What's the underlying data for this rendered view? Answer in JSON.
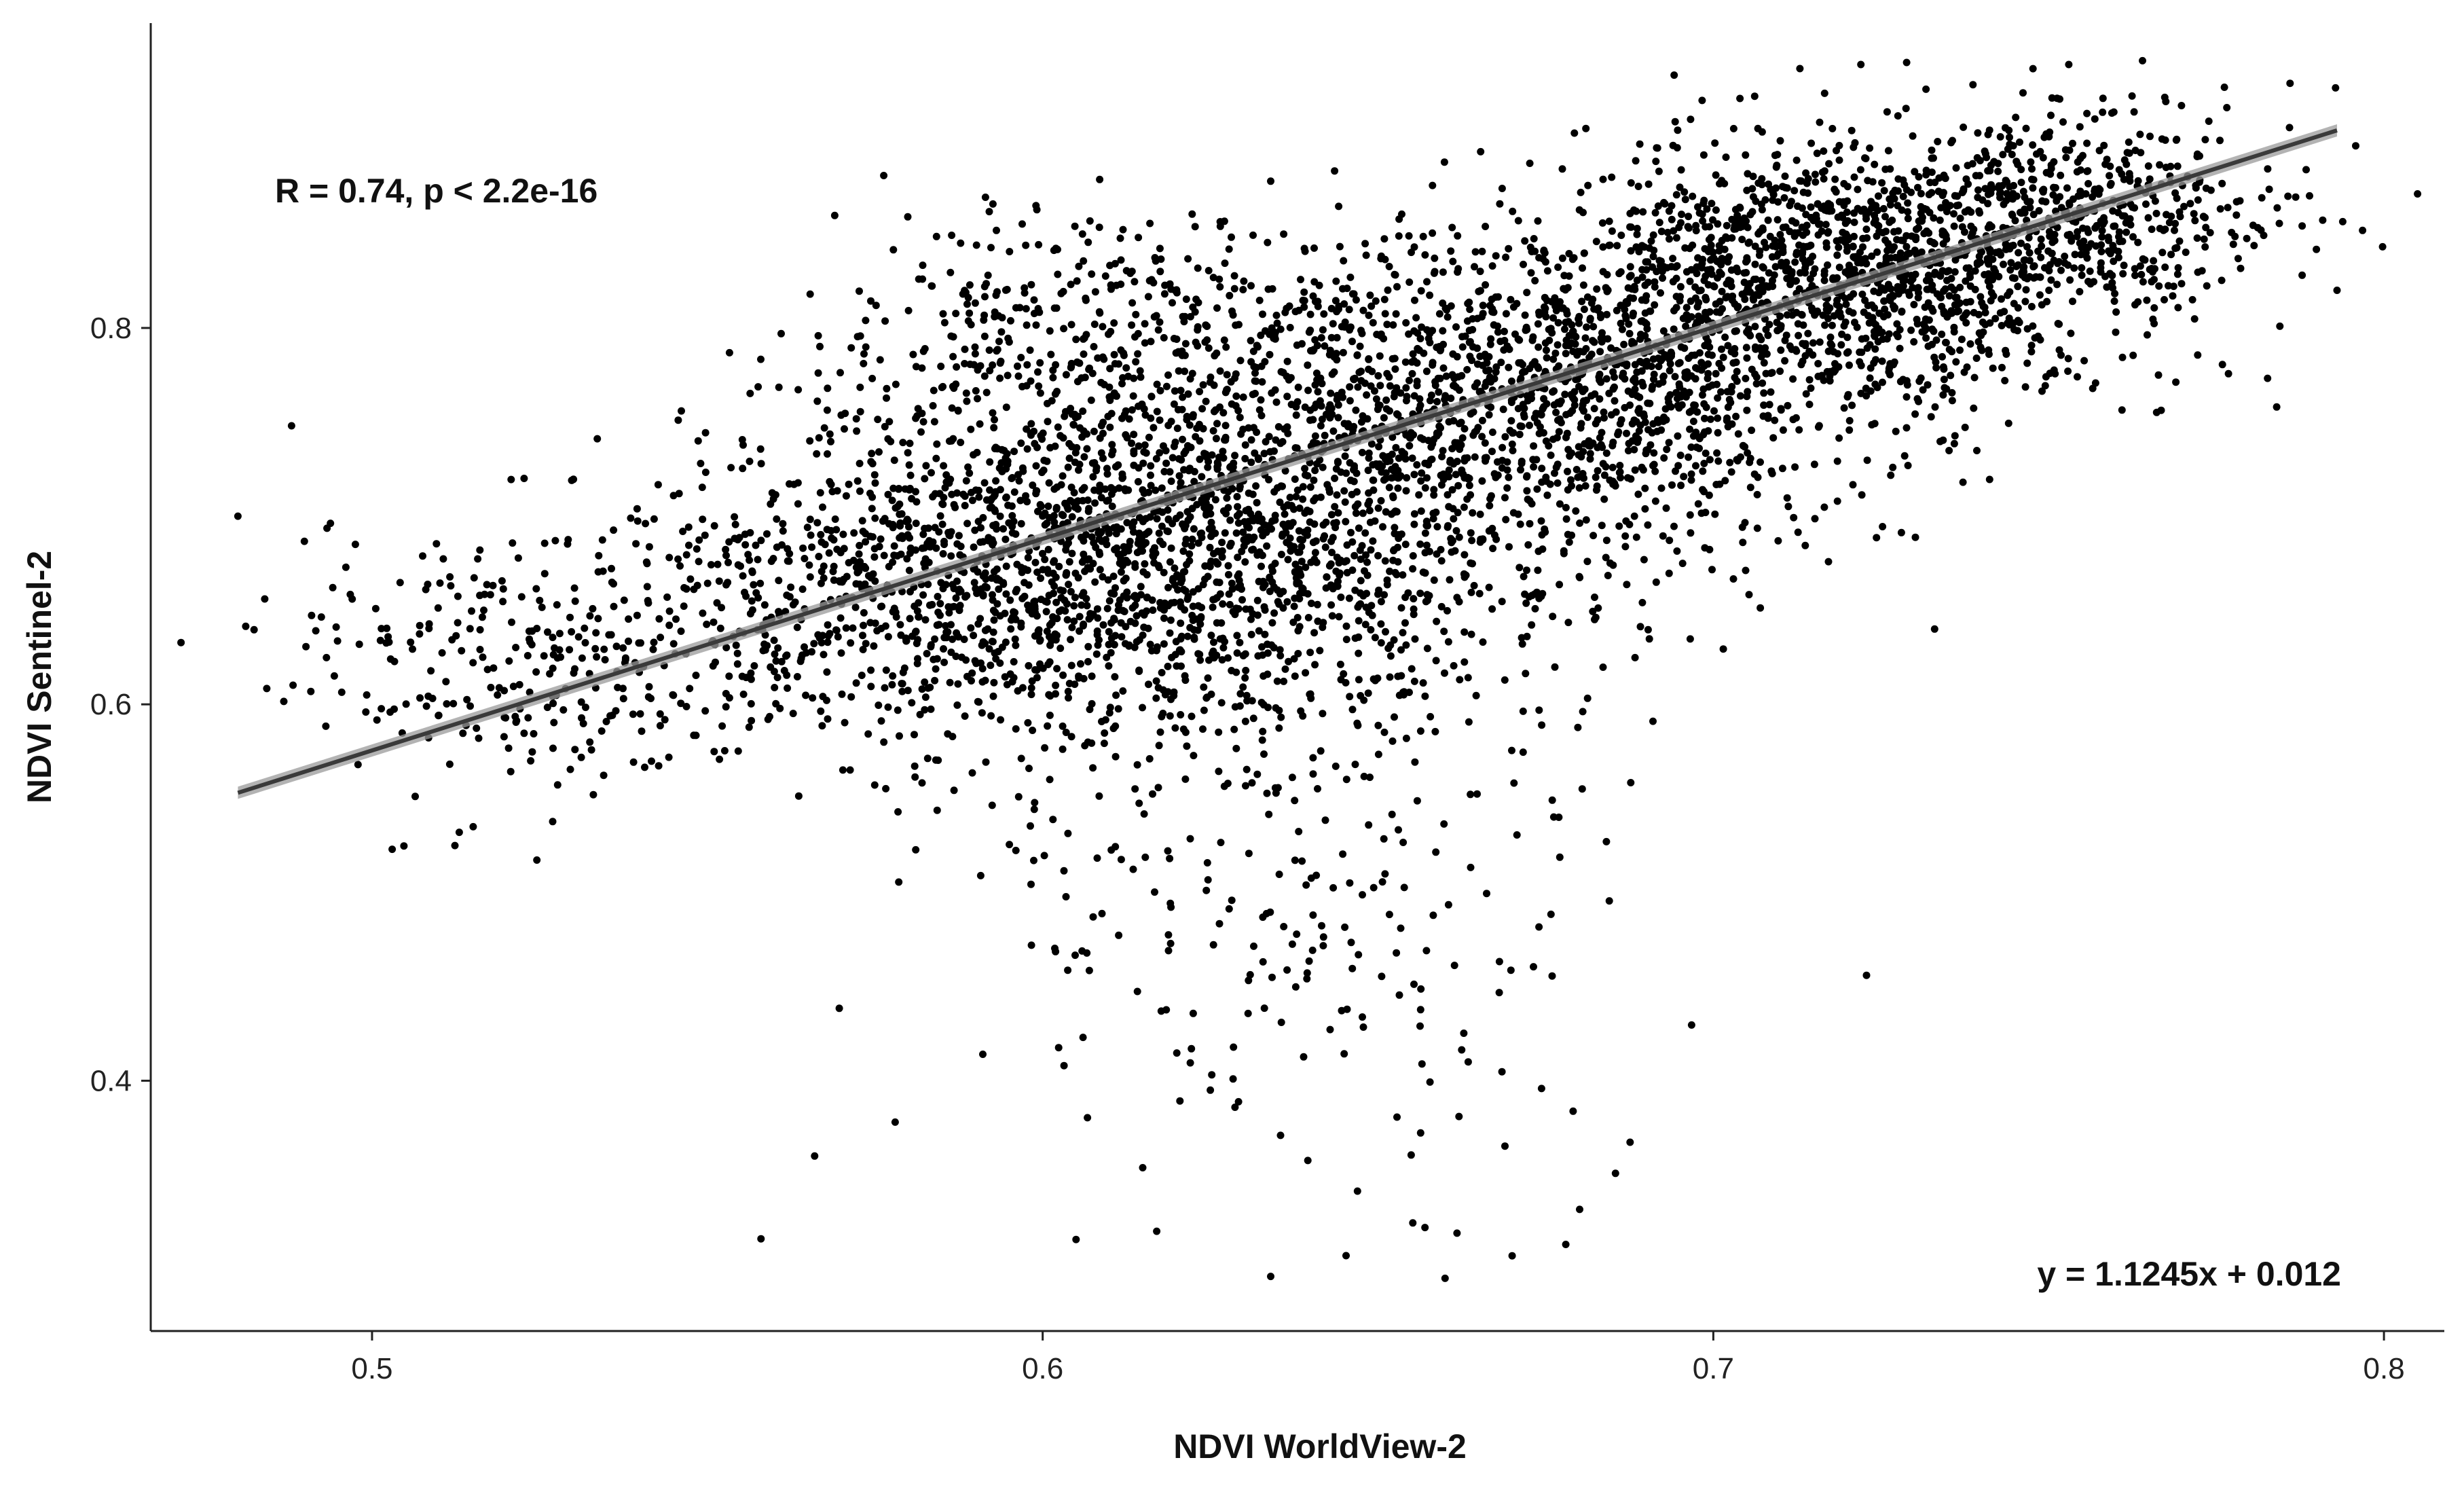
{
  "chart_data": {
    "type": "scatter",
    "xlabel": "NDVI WorldView-2",
    "ylabel": "NDVI Sentinel-2",
    "xlim": [
      0.467,
      0.809
    ],
    "ylim": [
      0.267,
      0.962
    ],
    "x_ticks": [
      0.5,
      0.6,
      0.7,
      0.8
    ],
    "x_tick_labels": [
      "0.5",
      "0.6",
      "0.7",
      "0.8"
    ],
    "y_ticks": [
      0.4,
      0.6,
      0.8
    ],
    "y_tick_labels": [
      "0.4",
      "0.6",
      "0.8"
    ],
    "grid": false,
    "legend": "none",
    "point_color": "#000000",
    "fit_line_color": "#3a3a3a",
    "confidence_band_color": "#9a9a9a",
    "annotations": {
      "correlation": "R = 0.74, p < 2.2e-16",
      "equation": "y = 1.1245x + 0.012"
    },
    "regression": {
      "x_range": [
        0.48,
        0.793
      ],
      "y_start": 0.553,
      "y_end": 0.905
    },
    "clusters": [
      {
        "cx": 0.53,
        "cy": 0.625,
        "sx": 0.022,
        "sy": 0.035,
        "n": 320
      },
      {
        "cx": 0.6,
        "cy": 0.67,
        "sx": 0.028,
        "sy": 0.045,
        "n": 1500
      },
      {
        "cx": 0.64,
        "cy": 0.72,
        "sx": 0.028,
        "sy": 0.055,
        "n": 1300
      },
      {
        "cx": 0.68,
        "cy": 0.77,
        "sx": 0.022,
        "sy": 0.04,
        "n": 900
      },
      {
        "cx": 0.72,
        "cy": 0.83,
        "sx": 0.022,
        "sy": 0.035,
        "n": 1400
      },
      {
        "cx": 0.755,
        "cy": 0.865,
        "sx": 0.015,
        "sy": 0.025,
        "n": 400
      },
      {
        "cx": 0.61,
        "cy": 0.8,
        "sx": 0.02,
        "sy": 0.03,
        "n": 300
      },
      {
        "cx": 0.63,
        "cy": 0.52,
        "sx": 0.025,
        "sy": 0.06,
        "n": 200
      },
      {
        "cx": 0.645,
        "cy": 0.42,
        "sx": 0.025,
        "sy": 0.05,
        "n": 60
      }
    ],
    "points": [
      {
        "x": 0.48,
        "y": 0.7
      },
      {
        "x": 0.488,
        "y": 0.748
      },
      {
        "x": 0.484,
        "y": 0.656
      },
      {
        "x": 0.503,
        "y": 0.523
      },
      {
        "x": 0.558,
        "y": 0.316
      },
      {
        "x": 0.561,
        "y": 0.797
      },
      {
        "x": 0.599,
        "y": 0.865
      },
      {
        "x": 0.634,
        "y": 0.878
      },
      {
        "x": 0.681,
        "y": 0.906
      },
      {
        "x": 0.722,
        "y": 0.94
      },
      {
        "x": 0.753,
        "y": 0.94
      },
      {
        "x": 0.764,
        "y": 0.942
      },
      {
        "x": 0.786,
        "y": 0.93
      },
      {
        "x": 0.793,
        "y": 0.82
      },
      {
        "x": 0.784,
        "y": 0.758
      },
      {
        "x": 0.733,
        "y": 0.64
      },
      {
        "x": 0.691,
        "y": 0.591
      },
      {
        "x": 0.634,
        "y": 0.296
      },
      {
        "x": 0.66,
        "y": 0.295
      },
      {
        "x": 0.67,
        "y": 0.307
      },
      {
        "x": 0.678,
        "y": 0.313
      },
      {
        "x": 0.578,
        "y": 0.378
      },
      {
        "x": 0.566,
        "y": 0.36
      },
      {
        "x": 0.513,
        "y": 0.532
      },
      {
        "x": 0.533,
        "y": 0.552
      },
      {
        "x": 0.549,
        "y": 0.728
      },
      {
        "x": 0.625,
        "y": 0.395
      },
      {
        "x": 0.657,
        "y": 0.322
      },
      {
        "x": 0.617,
        "y": 0.32
      },
      {
        "x": 0.778,
        "y": 0.86
      }
    ]
  }
}
